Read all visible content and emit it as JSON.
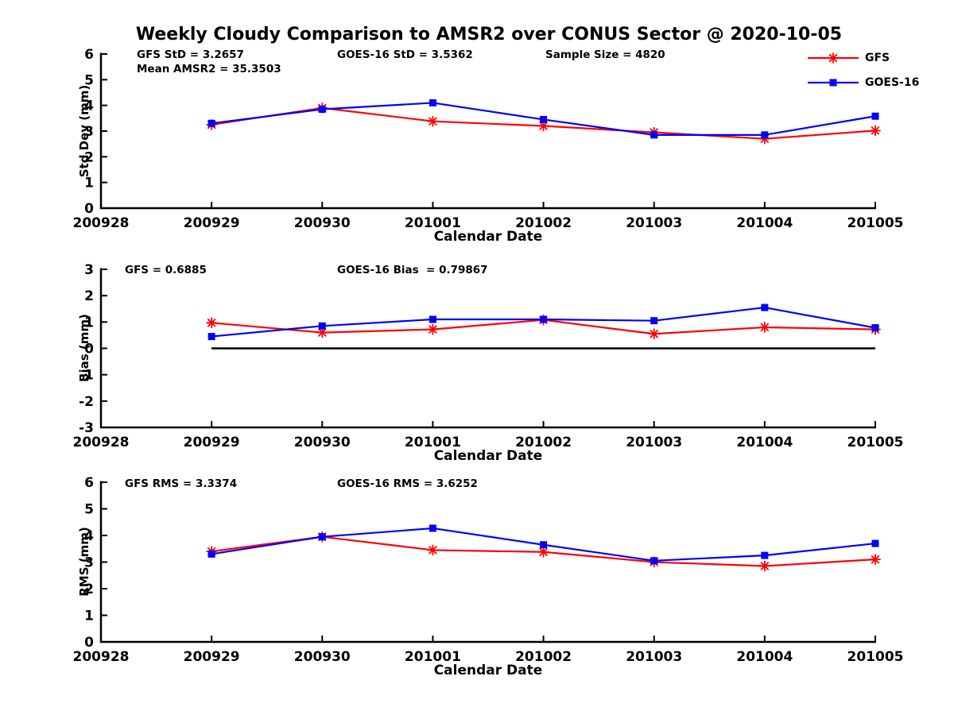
{
  "title": "Weekly Cloudy Comparison to AMSR2 over CONUS Sector @ 2020-10-05",
  "legend": {
    "items": [
      {
        "label": "GFS",
        "color": "#ff0000",
        "marker": "asterisk"
      },
      {
        "label": "GOES-16",
        "color": "#0000ff",
        "marker": "square"
      }
    ]
  },
  "chart_data": [
    {
      "type": "line",
      "panel": "std-dev",
      "ylabel": "Std Dev (mm)",
      "xlabel": "Calendar Date",
      "categories": [
        "200928",
        "200929",
        "200930",
        "201001",
        "201002",
        "201003",
        "201004",
        "201005"
      ],
      "ylim": [
        0,
        6
      ],
      "yticks": [
        "0",
        "1",
        "2",
        "3",
        "4",
        "5",
        "6"
      ],
      "x": [
        "200929",
        "200930",
        "201001",
        "201002",
        "201003",
        "201004",
        "201005"
      ],
      "grid": false,
      "zero_line": false,
      "series": [
        {
          "name": "GFS",
          "color": "#ff0000",
          "marker": "asterisk",
          "values": [
            3.25,
            3.9,
            3.38,
            3.2,
            2.95,
            2.7,
            3.02
          ]
        },
        {
          "name": "GOES-16",
          "color": "#0000ff",
          "marker": "square",
          "values": [
            3.3,
            3.85,
            4.1,
            3.45,
            2.85,
            2.85,
            3.58
          ]
        }
      ],
      "annotations": {
        "left": "GFS StD = 3.2657",
        "left2": "Mean AMSR2 = 35.3503",
        "center": "GOES-16 StD = 3.5362",
        "right": "Sample Size = 4820"
      }
    },
    {
      "type": "line",
      "panel": "bias",
      "ylabel": "Bias (mm)",
      "xlabel": "Calendar Date",
      "categories": [
        "200928",
        "200929",
        "200930",
        "201001",
        "201002",
        "201003",
        "201004",
        "201005"
      ],
      "ylim": [
        -3,
        3
      ],
      "yticks": [
        "-3",
        "-2",
        "-1",
        "0",
        "1",
        "2",
        "3"
      ],
      "x": [
        "200929",
        "200930",
        "201001",
        "201002",
        "201003",
        "201004",
        "201005"
      ],
      "grid": false,
      "zero_line": true,
      "series": [
        {
          "name": "GFS",
          "color": "#ff0000",
          "marker": "asterisk",
          "values": [
            0.97,
            0.6,
            0.72,
            1.08,
            0.55,
            0.8,
            0.72
          ]
        },
        {
          "name": "GOES-16",
          "color": "#0000ff",
          "marker": "square",
          "values": [
            0.45,
            0.85,
            1.1,
            1.1,
            1.05,
            1.55,
            0.78
          ]
        }
      ],
      "annotations": {
        "left": "GFS = 0.6885",
        "center": "GOES-16 Bias  = 0.79867"
      }
    },
    {
      "type": "line",
      "panel": "rms",
      "ylabel": "RMS (mm)",
      "xlabel": "Calendar Date",
      "categories": [
        "200928",
        "200929",
        "200930",
        "201001",
        "201002",
        "201003",
        "201004",
        "201005"
      ],
      "ylim": [
        0,
        6
      ],
      "yticks": [
        "0",
        "1",
        "2",
        "3",
        "4",
        "5",
        "6"
      ],
      "x": [
        "200929",
        "200930",
        "201001",
        "201002",
        "201003",
        "201004",
        "201005"
      ],
      "grid": false,
      "zero_line": false,
      "series": [
        {
          "name": "GFS",
          "color": "#ff0000",
          "marker": "asterisk",
          "values": [
            3.4,
            3.95,
            3.45,
            3.38,
            3.0,
            2.85,
            3.1
          ]
        },
        {
          "name": "GOES-16",
          "color": "#0000ff",
          "marker": "square",
          "values": [
            3.3,
            3.95,
            4.27,
            3.65,
            3.05,
            3.25,
            3.7
          ]
        }
      ],
      "annotations": {
        "left": "GFS RMS = 3.3374",
        "center": "GOES-16 RMS = 3.6252"
      }
    }
  ]
}
